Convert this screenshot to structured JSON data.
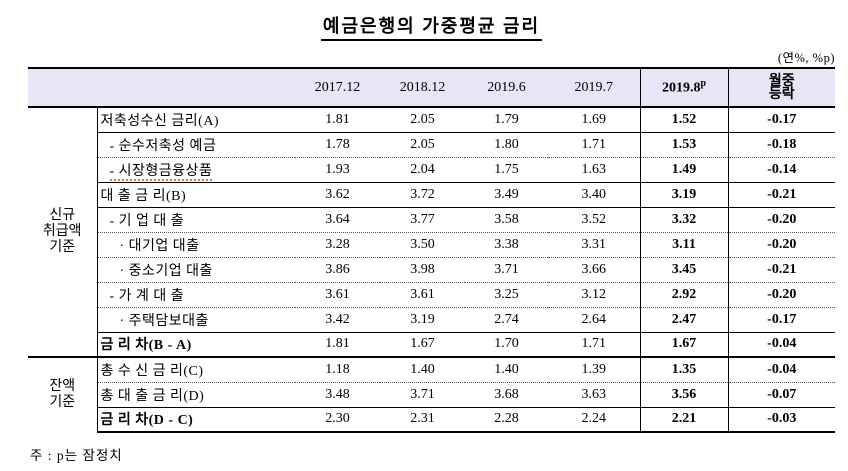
{
  "page": {
    "title": "예금은행의 가중평균 금리",
    "unit_note": "(연%, %p)",
    "footnote": "주 : p는 잠정치"
  },
  "colors": {
    "header_bg": "#e6e6f7",
    "border": "#000000",
    "spellcheck_underline": "#e07820"
  },
  "table": {
    "header": {
      "date_columns": [
        "2017.12",
        "2018.12",
        "2019.6",
        "2019.7"
      ],
      "provisional_column": {
        "text": "2019.8",
        "sup": "p"
      },
      "change_column_lines": [
        "월중",
        "등락"
      ]
    },
    "sections": [
      {
        "group_lines": [
          "신규",
          "취급액",
          "기준"
        ],
        "rows": [
          {
            "label": "저축성수신 금리(A)",
            "indent": 0,
            "bold": false,
            "squiggle": false,
            "border": "none",
            "values": [
              "1.81",
              "2.05",
              "1.79",
              "1.69",
              "1.52",
              "-0.17"
            ]
          },
          {
            "label": "- 순수저축성 예금",
            "indent": 1,
            "bold": false,
            "squiggle": false,
            "border": "solid",
            "values": [
              "1.78",
              "2.05",
              "1.80",
              "1.71",
              "1.53",
              "-0.18"
            ]
          },
          {
            "label": "- 시장형금융상품",
            "indent": 1,
            "bold": false,
            "squiggle": true,
            "border": "dot",
            "values": [
              "1.93",
              "2.04",
              "1.75",
              "1.63",
              "1.49",
              "-0.14"
            ]
          },
          {
            "label": "대 출 금 리(B)",
            "indent": 0,
            "bold": false,
            "squiggle": false,
            "border": "solid",
            "values": [
              "3.62",
              "3.72",
              "3.49",
              "3.40",
              "3.19",
              "-0.21"
            ]
          },
          {
            "label": "- 기 업 대 출",
            "indent": 1,
            "bold": false,
            "squiggle": false,
            "border": "solid",
            "values": [
              "3.64",
              "3.77",
              "3.58",
              "3.52",
              "3.32",
              "-0.20"
            ]
          },
          {
            "label": "· 대기업 대출",
            "indent": 2,
            "bold": false,
            "squiggle": false,
            "border": "dot",
            "values": [
              "3.28",
              "3.50",
              "3.38",
              "3.31",
              "3.11",
              "-0.20"
            ]
          },
          {
            "label": "· 중소기업 대출",
            "indent": 2,
            "bold": false,
            "squiggle": false,
            "border": "dot",
            "values": [
              "3.86",
              "3.98",
              "3.71",
              "3.66",
              "3.45",
              "-0.21"
            ]
          },
          {
            "label": "- 가 계 대 출",
            "indent": 1,
            "bold": false,
            "squiggle": false,
            "border": "dot",
            "values": [
              "3.61",
              "3.61",
              "3.25",
              "3.12",
              "2.92",
              "-0.20"
            ]
          },
          {
            "label": "· 주택담보대출",
            "indent": 2,
            "bold": false,
            "squiggle": false,
            "border": "dot",
            "values": [
              "3.42",
              "3.19",
              "2.74",
              "2.64",
              "2.47",
              "-0.17"
            ]
          },
          {
            "label": "금 리 차(B - A)",
            "indent": 0,
            "bold": true,
            "squiggle": false,
            "border": "solid",
            "values": [
              "1.81",
              "1.67",
              "1.70",
              "1.71",
              "1.67",
              "-0.04"
            ]
          }
        ]
      },
      {
        "group_lines": [
          "잔액",
          "기준"
        ],
        "rows": [
          {
            "label": "총 수 신 금 리(C)",
            "indent": 0,
            "bold": false,
            "squiggle": false,
            "border": "thick",
            "values": [
              "1.18",
              "1.40",
              "1.40",
              "1.39",
              "1.35",
              "-0.04"
            ]
          },
          {
            "label": "총 대 출 금 리(D)",
            "indent": 0,
            "bold": false,
            "squiggle": false,
            "border": "dot",
            "values": [
              "3.48",
              "3.71",
              "3.68",
              "3.63",
              "3.56",
              "-0.07"
            ]
          },
          {
            "label": "금 리 차(D - C)",
            "indent": 0,
            "bold": true,
            "squiggle": false,
            "border": "solid",
            "values": [
              "2.30",
              "2.31",
              "2.28",
              "2.24",
              "2.21",
              "-0.03"
            ]
          }
        ]
      }
    ]
  }
}
